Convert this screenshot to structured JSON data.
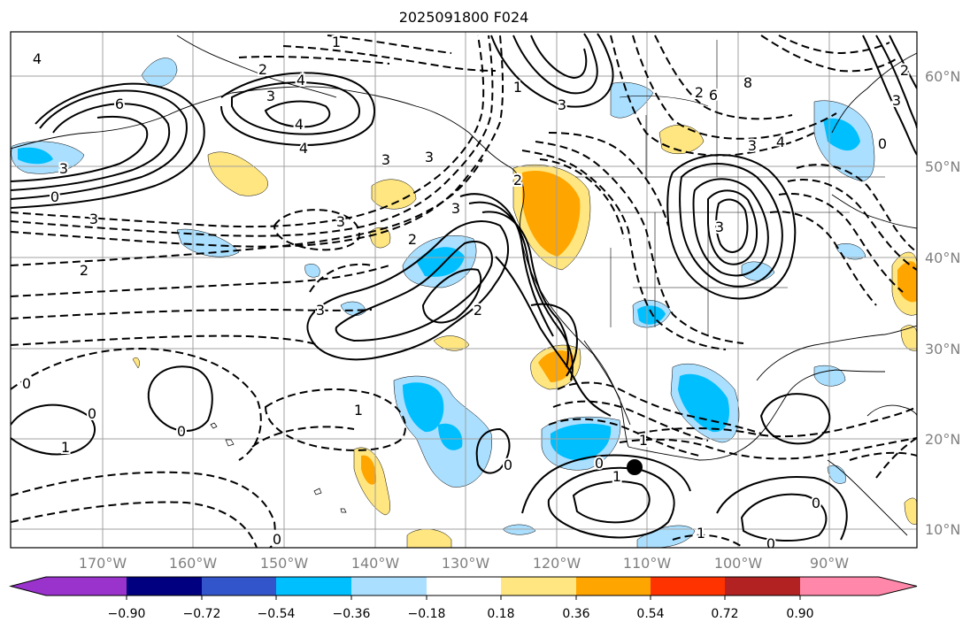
{
  "title": "2025091800 F024",
  "map": {
    "longitude_ticks": [
      "170°W",
      "160°W",
      "150°W",
      "140°W",
      "130°W",
      "120°W",
      "110°W",
      "100°W",
      "90°W"
    ],
    "latitude_ticks": [
      "60°N",
      "50°N",
      "40°N",
      "30°N",
      "20°N",
      "10°N"
    ],
    "contour_labels": [
      "1",
      "4",
      "2",
      "4",
      "3",
      "3",
      "4",
      "6",
      "3",
      "0",
      "3",
      "2",
      "3",
      "3",
      "2",
      "1",
      "2",
      "3",
      "3",
      "3",
      "4",
      "2",
      "8",
      "6",
      "3",
      "4",
      "3",
      "0",
      "3",
      "2",
      "0",
      "1",
      "0",
      "0",
      "1",
      "1",
      "0",
      "1",
      "0",
      "1",
      "0",
      "0",
      "0",
      "2"
    ],
    "line_color": "#000000",
    "grid_color": "#a0a0a0",
    "marker": "filled-circle"
  },
  "colorbar": {
    "ticks": [
      "−0.90",
      "−0.72",
      "−0.54",
      "−0.36",
      "−0.18",
      "0.18",
      "0.36",
      "0.54",
      "0.72",
      "0.90"
    ],
    "colors": [
      "#9933cc",
      "#000080",
      "#3355cc",
      "#00bfff",
      "#aadfff",
      "#ffffff",
      "#ffe680",
      "#ffa500",
      "#ff3300",
      "#b22222",
      "#ff88aa"
    ]
  }
}
